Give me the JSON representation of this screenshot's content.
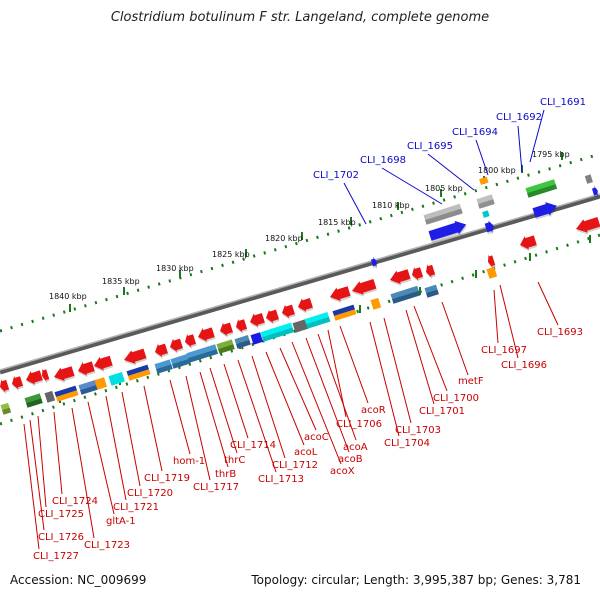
{
  "title": "Clostridium botulinum F str. Langeland, complete genome",
  "footer": {
    "accession": "Accession: NC_009699",
    "topology": "Topology: circular; Length: 3,995,387 bp; Genes: 3,781"
  },
  "kbp_labels": [
    "1795 kbp",
    "1800 kbp",
    "1805 kbp",
    "1810 kbp",
    "1815 kbp",
    "1820 kbp",
    "1825 kbp",
    "1830 kbp",
    "1835 kbp",
    "1840 kbp"
  ],
  "forward_labels": [
    "CLI_1691",
    "CLI_1692",
    "CLI_1694",
    "CLI_1695",
    "CLI_1698",
    "CLI_1702"
  ],
  "reverse_labels": [
    "CLI_1693",
    "CLI_1696",
    "CLI_1697",
    "metF",
    "CLI_1700",
    "CLI_1701",
    "CLI_1703",
    "CLI_1704",
    "acoR",
    "CLI_1706",
    "acoA",
    "acoB",
    "acoX",
    "acoC",
    "acoL",
    "CLI_1712",
    "CLI_1713",
    "CLI_1714",
    "thrC",
    "thrB",
    "CLI_1717",
    "hom-1",
    "CLI_1719",
    "CLI_1720",
    "CLI_1721",
    "gltA-1",
    "CLI_1723",
    "CLI_1724",
    "CLI_1725",
    "CLI_1726",
    "CLI_1727"
  ],
  "colors": {
    "forward_gene": "#1e1ee6",
    "reverse_gene": "#e61414",
    "backbone": "#808080",
    "tick": "#1a7a1a",
    "forward_label": "#0a0ac8",
    "reverse_label": "#c80000"
  }
}
